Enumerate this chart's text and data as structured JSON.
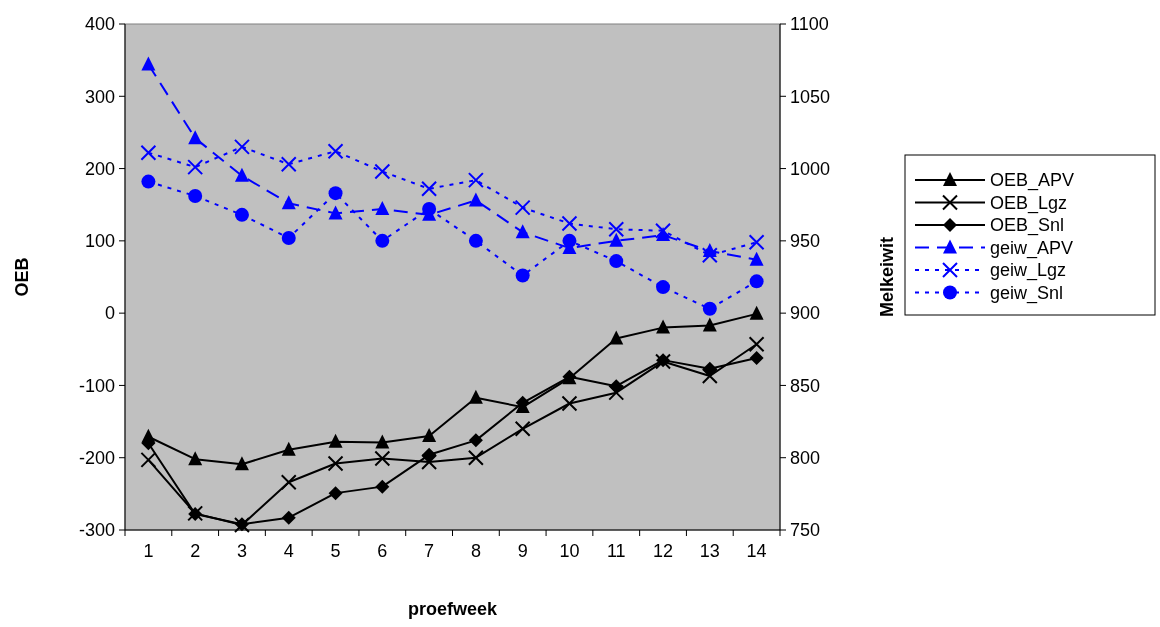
{
  "chart_data": {
    "type": "line",
    "xlabel": "proefweek",
    "ylabel": "OEB",
    "y2label": "Melkeiwit",
    "categories": [
      "1",
      "2",
      "3",
      "4",
      "5",
      "6",
      "7",
      "8",
      "9",
      "10",
      "11",
      "12",
      "13",
      "14"
    ],
    "ylim": [
      -300,
      400
    ],
    "yticks": [
      -300,
      -200,
      -100,
      0,
      100,
      200,
      300,
      400
    ],
    "y2lim": [
      750,
      1100
    ],
    "y2ticks": [
      750,
      800,
      850,
      900,
      950,
      1000,
      1050,
      1100
    ],
    "grid": false,
    "legend": "right",
    "series": [
      {
        "name": "OEB_APV",
        "color": "#000000",
        "marker": "triangle",
        "line_style": "solid",
        "values": [
          -171,
          -202,
          -209,
          -189,
          -178,
          -179,
          -170,
          -117,
          -130,
          -90,
          -35,
          -20,
          -17,
          -1
        ]
      },
      {
        "name": "OEB_Lgz",
        "color": "#000000",
        "marker": "cross",
        "line_style": "solid",
        "values": [
          -203,
          -277,
          -293,
          -234,
          -208,
          -201,
          -206,
          -200,
          -160,
          -125,
          -110,
          -67,
          -87,
          -43
        ]
      },
      {
        "name": "OEB_Snl",
        "color": "#000000",
        "marker": "diamond",
        "line_style": "solid",
        "values": [
          -180,
          -278,
          -292,
          -283,
          -249,
          -240,
          -196,
          -176,
          -124,
          -88,
          -101,
          -65,
          -77,
          -62
        ]
      },
      {
        "name": "geiw_APV",
        "color": "#0000ff",
        "marker": "triangle",
        "line_style": "dashed",
        "axis": "y2",
        "values": [
          1072,
          1021,
          995,
          976,
          969,
          972,
          968,
          978,
          956,
          945,
          950,
          954,
          943,
          937
        ]
      },
      {
        "name": "geiw_Lgz",
        "color": "#0000ff",
        "marker": "cross",
        "line_style": "dotted",
        "axis": "y2",
        "values": [
          1011,
          1001,
          1015,
          1003,
          1012,
          998,
          986,
          992,
          973,
          962,
          958,
          957,
          940,
          949
        ]
      },
      {
        "name": "geiw_Snl",
        "color": "#0000ff",
        "marker": "circle",
        "line_style": "dotted",
        "axis": "y2",
        "values": [
          991,
          981,
          968,
          952,
          983,
          950,
          972,
          950,
          926,
          950,
          936,
          918,
          903,
          922
        ]
      }
    ]
  }
}
